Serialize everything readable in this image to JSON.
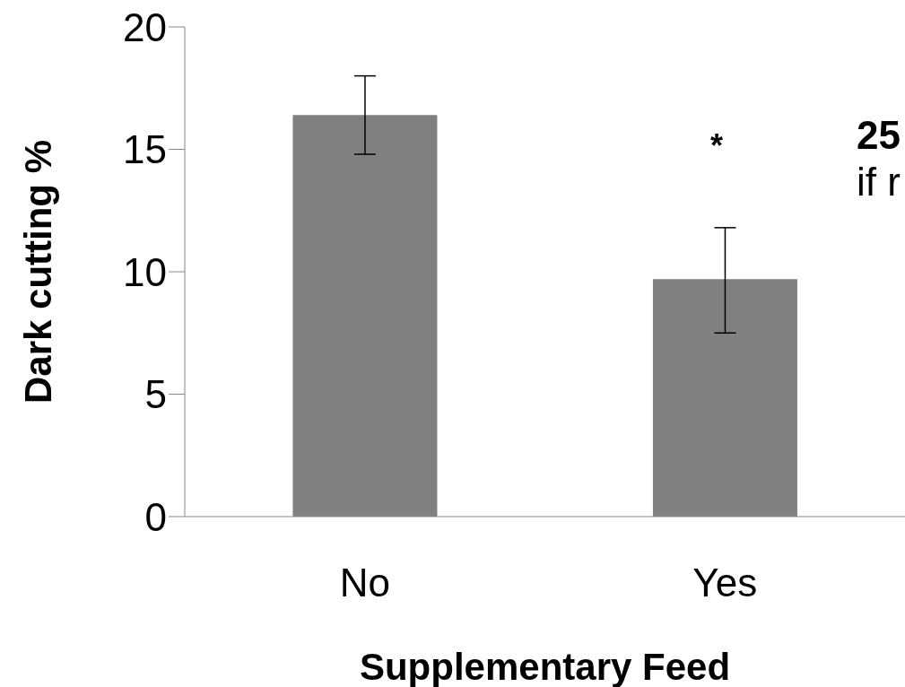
{
  "chart_data": {
    "type": "bar",
    "xlabel": "Supplementary Feed",
    "ylabel": "Dark cutting %",
    "categories": [
      "No",
      "Yes"
    ],
    "values": [
      16.4,
      9.7
    ],
    "errors": [
      1.6,
      [
        7.5,
        11.8
      ]
    ],
    "color": "#808080",
    "ylim": [
      0,
      20
    ],
    "yticks": [
      0,
      5,
      10,
      15,
      20
    ],
    "grid": false,
    "legend": false,
    "annotations": [
      "*",
      "25",
      "if r"
    ]
  }
}
